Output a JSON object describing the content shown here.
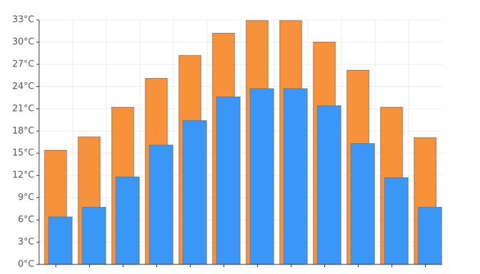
{
  "chart_data": {
    "type": "bar",
    "categories": [
      "",
      "",
      "",
      "",
      "",
      "",
      "",
      "",
      "",
      "",
      "",
      ""
    ],
    "series": [
      {
        "values": [
          15.4,
          17.2,
          21.2,
          25.1,
          28.2,
          31.2,
          32.9,
          32.9,
          30.0,
          26.2,
          21.2,
          17.1
        ],
        "color": "#f7923a"
      },
      {
        "values": [
          6.4,
          7.7,
          11.8,
          16.1,
          19.4,
          22.6,
          23.7,
          23.7,
          21.4,
          16.3,
          11.7,
          7.7
        ],
        "color": "#3a97f7"
      }
    ],
    "ylim": [
      0,
      33
    ],
    "yticks": [
      0,
      3,
      6,
      9,
      12,
      15,
      18,
      21,
      24,
      27,
      30,
      33
    ],
    "yunit": "°C",
    "grid": true
  }
}
